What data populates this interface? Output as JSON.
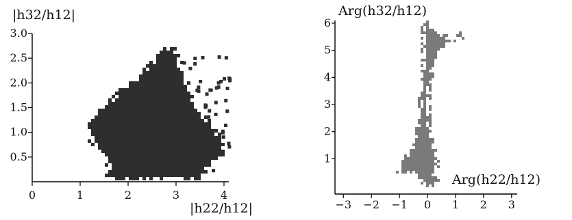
{
  "chart_data": [
    {
      "type": "scatter",
      "ylabel": "|h32/h12|",
      "xlabel": "|h22/h12|",
      "xlim": [
        0,
        4.1
      ],
      "ylim": [
        0,
        3.0
      ],
      "x_ticks": [
        "0",
        "1",
        "2",
        "3",
        "4"
      ],
      "y_ticks": [
        "0.5",
        "1.0",
        "1.5",
        "2.0",
        "2.5",
        "3.0"
      ],
      "marker_color": "#2e2e2e",
      "region_outline": [
        [
          1.55,
          0.0
        ],
        [
          1.5,
          0.55
        ],
        [
          1.2,
          0.75
        ],
        [
          1.12,
          1.05
        ],
        [
          1.15,
          1.25
        ],
        [
          1.4,
          1.5
        ],
        [
          2.0,
          2.0
        ],
        [
          2.5,
          2.45
        ],
        [
          2.75,
          2.75
        ],
        [
          3.0,
          2.7
        ],
        [
          3.15,
          2.35
        ],
        [
          3.5,
          1.5
        ],
        [
          3.95,
          0.95
        ],
        [
          4.05,
          0.5
        ],
        [
          3.8,
          0.4
        ],
        [
          3.5,
          0.05
        ],
        [
          3.5,
          0.0
        ]
      ],
      "grid": false
    },
    {
      "type": "scatter",
      "ylabel": "Arg(h32/h12)",
      "xlabel": "Arg(h22/h12)",
      "xlim": [
        -3.3,
        3.2
      ],
      "ylim": [
        -0.3,
        6.1
      ],
      "x_ticks": [
        "−3",
        "−2",
        "−1",
        "0",
        "1",
        "2",
        "3"
      ],
      "y_ticks": [
        "1",
        "2",
        "3",
        "4",
        "5",
        "6"
      ],
      "marker_color": "#7a7a7a",
      "region_outline": [
        [
          -0.1,
          6.15
        ],
        [
          0.15,
          6.15
        ],
        [
          0.25,
          5.75
        ],
        [
          0.85,
          5.55
        ],
        [
          1.2,
          5.7
        ],
        [
          1.3,
          5.45
        ],
        [
          0.7,
          5.2
        ],
        [
          0.3,
          4.6
        ],
        [
          0.12,
          3.5
        ],
        [
          0.1,
          2.3
        ],
        [
          0.3,
          1.5
        ],
        [
          0.45,
          0.8
        ],
        [
          0.25,
          0.45
        ],
        [
          0.45,
          0.15
        ],
        [
          0.3,
          -0.05
        ],
        [
          -0.2,
          -0.1
        ],
        [
          -0.3,
          0.3
        ],
        [
          -0.6,
          0.5
        ],
        [
          -1.1,
          0.45
        ],
        [
          -1.05,
          0.8
        ],
        [
          -0.65,
          1.3
        ],
        [
          -0.4,
          2.3
        ],
        [
          -0.3,
          3.3
        ],
        [
          -0.25,
          4.4
        ],
        [
          -0.2,
          5.3
        ],
        [
          -0.25,
          5.9
        ]
      ],
      "grid": false
    }
  ]
}
